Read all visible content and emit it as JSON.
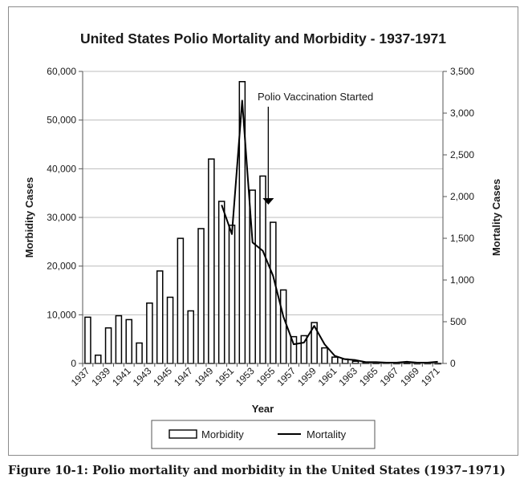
{
  "caption": "Figure 10-1: Polio mortality and morbidity in the United States (1937–1971)",
  "chart_data": {
    "type": "bar",
    "title": "United States Polio Mortality and Morbidity - 1937-1971",
    "xlabel": "Year",
    "ylabel": "Morbidity Cases",
    "y2label": "Mortality Cases",
    "ylim": [
      0,
      60000
    ],
    "y2lim": [
      0,
      3500
    ],
    "yticks": [
      "0",
      "10,000",
      "20,000",
      "30,000",
      "40,000",
      "50,000",
      "60,000"
    ],
    "y2ticks": [
      "0",
      "500",
      "1,000",
      "1,500",
      "2,000",
      "2,500",
      "3,000",
      "3,500"
    ],
    "categories": [
      1937,
      1938,
      1939,
      1940,
      1941,
      1942,
      1943,
      1944,
      1945,
      1946,
      1947,
      1948,
      1949,
      1950,
      1951,
      1952,
      1953,
      1954,
      1955,
      1956,
      1957,
      1958,
      1959,
      1960,
      1961,
      1962,
      1963,
      1964,
      1965,
      1966,
      1967,
      1968,
      1969,
      1970,
      1971
    ],
    "xticklabels": [
      "1937",
      "1939",
      "1941",
      "1943",
      "1945",
      "1947",
      "1949",
      "1951",
      "1953",
      "1955",
      "1957",
      "1959",
      "1961",
      "1963",
      "1965",
      "1967",
      "1969",
      "1971"
    ],
    "series": [
      {
        "name": "Morbidity",
        "type": "bar",
        "axis": "left",
        "values": [
          9500,
          1700,
          7300,
          9800,
          9000,
          4200,
          12400,
          19000,
          13600,
          25700,
          10800,
          27700,
          42000,
          33300,
          28400,
          57900,
          35600,
          38500,
          29000,
          15100,
          5500,
          5700,
          8400,
          3200,
          1300,
          900,
          450,
          120,
          70,
          110,
          40,
          55,
          20,
          35,
          20
        ]
      },
      {
        "name": "Mortality",
        "type": "line",
        "axis": "right",
        "values": [
          null,
          null,
          null,
          null,
          null,
          null,
          null,
          null,
          null,
          null,
          null,
          null,
          null,
          1900,
          1550,
          3150,
          1450,
          1350,
          1050,
          560,
          230,
          250,
          450,
          230,
          90,
          50,
          40,
          15,
          15,
          10,
          10,
          20,
          10,
          10,
          20
        ]
      }
    ],
    "annotation": {
      "text": "Polio Vaccination Started",
      "year": 1955
    },
    "grid": true,
    "legend_position": "bottom"
  }
}
